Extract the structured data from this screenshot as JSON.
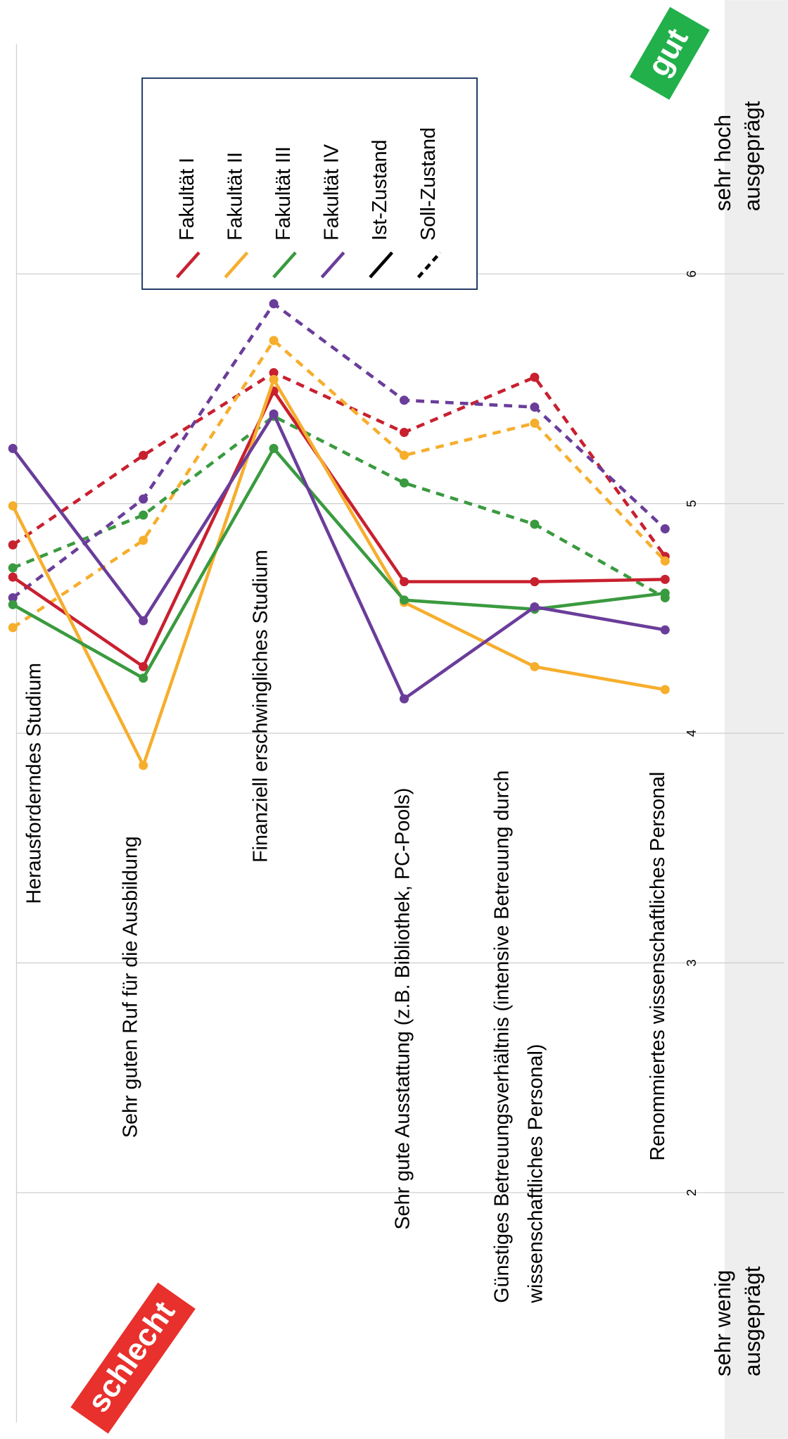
{
  "chart_data": {
    "type": "line",
    "categories": [
      "Herausforderndes Studium",
      "Sehr guten Ruf für die Ausbildung",
      "Finanziell erschwingliches Studium",
      "Sehr gute Ausstattung (z.B. Bibliothek, PC-Pools)",
      "Günstiges Betreuungsverhältnis (intensive Betreuung durch wissenschaftliches Personal)",
      "Renommiertes wissenschaftliches Personal"
    ],
    "series": [
      {
        "name": "Fakultät I",
        "color": "#c8202f",
        "values": [
          4.68,
          4.29,
          5.49,
          4.66,
          4.66,
          4.67
        ],
        "soll": [
          4.82,
          5.21,
          5.57,
          5.31,
          5.55,
          4.77
        ]
      },
      {
        "name": "Fakultät II",
        "color": "#f6ae2d",
        "values": [
          4.99,
          3.86,
          5.54,
          4.57,
          4.29,
          4.19
        ],
        "soll": [
          4.46,
          4.84,
          5.71,
          5.21,
          5.35,
          4.75
        ]
      },
      {
        "name": "Fakultät III",
        "color": "#3a9a3f",
        "values": [
          4.56,
          4.24,
          5.24,
          4.58,
          4.54,
          4.61
        ],
        "soll": [
          4.72,
          4.95,
          5.38,
          5.09,
          4.91,
          4.59
        ]
      },
      {
        "name": "Fakultät IV",
        "color": "#6a3d9a",
        "values": [
          5.24,
          4.49,
          5.39,
          4.15,
          4.55,
          4.45
        ],
        "soll": [
          4.59,
          5.02,
          5.87,
          5.45,
          5.42,
          4.89
        ]
      }
    ],
    "line_styles": {
      "solid": "Ist-Zustand",
      "dashed": "Soll-Zustand"
    },
    "ylim": [
      1,
      7
    ],
    "yticks": [
      2,
      3,
      4,
      5,
      6
    ],
    "grid": true,
    "axis_low_label": "sehr wenig ausgeprägt",
    "axis_high_label": "sehr hoch ausgeprägt",
    "badge_good": "gut",
    "badge_bad": "schlecht"
  }
}
